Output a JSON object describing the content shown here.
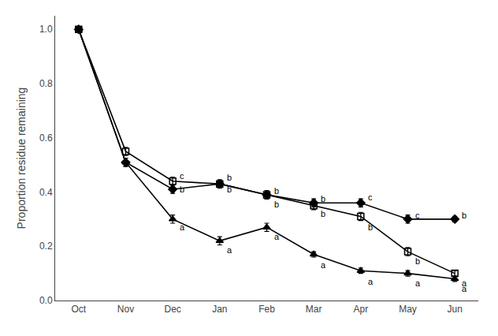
{
  "chart_data": {
    "type": "line",
    "categories": [
      "Oct",
      "Nov",
      "Dec",
      "Jan",
      "Feb",
      "Mar",
      "Apr",
      "May",
      "Jun"
    ],
    "series": [
      {
        "color": "#000000",
        "marker": "triangle-up",
        "values": [
          1.0,
          0.51,
          0.3,
          0.22,
          0.27,
          0.17,
          0.11,
          0.1,
          0.08
        ],
        "errors": [
          0.005,
          0.015,
          0.015,
          0.015,
          0.015,
          0.01,
          0.01,
          0.01,
          0.01
        ]
      },
      {
        "color": "#000000",
        "marker": "square-open",
        "values": [
          1.0,
          0.55,
          0.44,
          0.43,
          0.39,
          0.35,
          0.31,
          0.18,
          0.1
        ],
        "errors": [
          0.005,
          0.015,
          0.015,
          0.015,
          0.015,
          0.015,
          0.015,
          0.015,
          0.01
        ]
      },
      {
        "color": "#000000",
        "marker": "diamond",
        "values": [
          1.0,
          0.51,
          0.41,
          0.43,
          0.39,
          0.36,
          0.36,
          0.3,
          0.3
        ],
        "errors": [
          0.005,
          0.015,
          0.015,
          0.015,
          0.015,
          0.015,
          0.015,
          0.015,
          0.01
        ]
      }
    ],
    "annotations": [
      {
        "x": "Dec",
        "y": 0.46,
        "text": "c"
      },
      {
        "x": "Dec",
        "y": 0.41,
        "text": "b"
      },
      {
        "x": "Dec",
        "y": 0.27,
        "text": "a"
      },
      {
        "x": "Jan",
        "y": 0.455,
        "text": "b"
      },
      {
        "x": "Jan",
        "y": 0.41,
        "text": "b"
      },
      {
        "x": "Jan",
        "y": 0.185,
        "text": "a"
      },
      {
        "x": "Feb",
        "y": 0.405,
        "text": "b"
      },
      {
        "x": "Feb",
        "y": 0.355,
        "text": "b"
      },
      {
        "x": "Feb",
        "y": 0.235,
        "text": "a"
      },
      {
        "x": "Mar",
        "y": 0.375,
        "text": "b"
      },
      {
        "x": "Mar",
        "y": 0.32,
        "text": "b"
      },
      {
        "x": "Mar",
        "y": 0.13,
        "text": "a"
      },
      {
        "x": "Apr",
        "y": 0.38,
        "text": "c"
      },
      {
        "x": "Apr",
        "y": 0.27,
        "text": "b"
      },
      {
        "x": "Apr",
        "y": 0.07,
        "text": "a"
      },
      {
        "x": "May",
        "y": 0.315,
        "text": "c"
      },
      {
        "x": "May",
        "y": 0.145,
        "text": "b"
      },
      {
        "x": "May",
        "y": 0.065,
        "text": "a"
      },
      {
        "x": "Jun",
        "y": 0.315,
        "text": "b"
      },
      {
        "x": "Jun",
        "y": 0.065,
        "text": "a"
      },
      {
        "x": "Jun",
        "y": 0.045,
        "text": "a"
      }
    ],
    "ylabel": "Proportion residue remaining",
    "ylim": [
      0.0,
      1.05
    ],
    "yticks": [
      {
        "value": 0.0,
        "label": "0.0"
      },
      0.2,
      0.4,
      0.6,
      0.8,
      {
        "value": 1.0,
        "label": "1.0"
      }
    ],
    "grid": false
  }
}
